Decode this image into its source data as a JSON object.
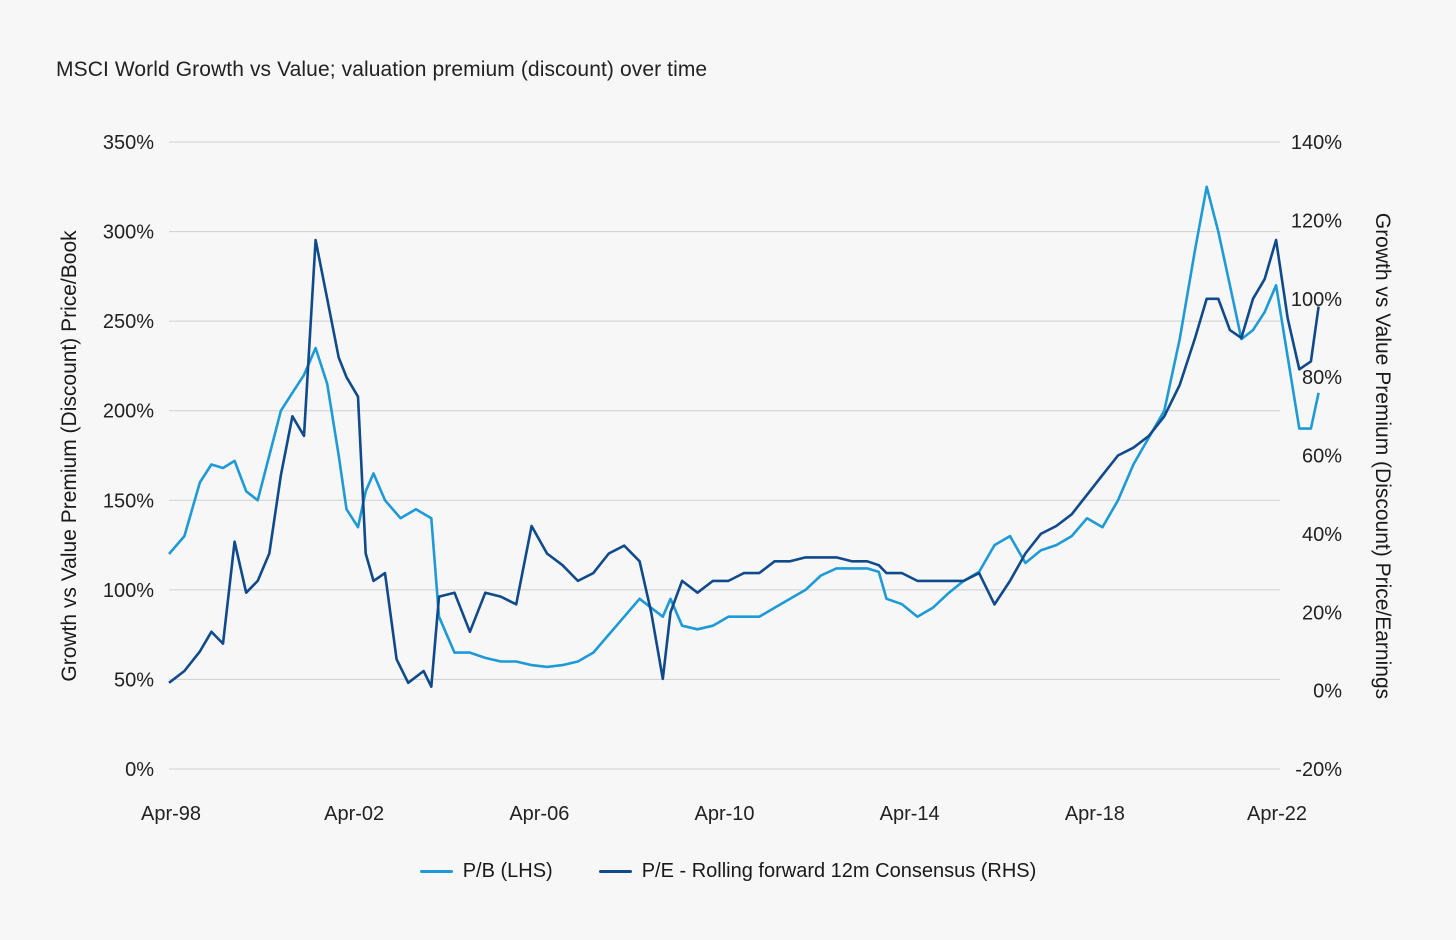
{
  "title": "MSCI World Growth vs Value; valuation premium (discount) over time",
  "colors": {
    "pb": "#1e9ad6",
    "pe": "#0f4a8a",
    "grid": "#cfcfcf",
    "background": "#f7f7f7"
  },
  "legend": {
    "pb_label": "P/B (LHS)",
    "pe_label": "P/E - Rolling forward 12m Consensus (RHS)"
  },
  "chart_data": {
    "type": "line",
    "title": "MSCI World Growth vs Value; valuation premium (discount) over time",
    "x_axis": {
      "tick_labels": [
        "Apr-98",
        "Apr-02",
        "Apr-06",
        "Apr-10",
        "Apr-14",
        "Apr-18",
        "Apr-22"
      ],
      "range": [
        "1998-04",
        "2022-04"
      ]
    },
    "y_left": {
      "label": "Growth vs Value Premium (Discount) Price/Book",
      "range": [
        0,
        350
      ],
      "ticks": [
        "0%",
        "50%",
        "100%",
        "150%",
        "200%",
        "250%",
        "300%",
        "350%"
      ]
    },
    "y_right": {
      "label": "Growth vs Value Premium (Discount) Price/Earnings",
      "range": [
        -20,
        140
      ],
      "ticks": [
        "-20%",
        "0%",
        "20%",
        "40%",
        "60%",
        "80%",
        "100%",
        "120%",
        "140%"
      ]
    },
    "grid": "horizontal",
    "legend_position": "bottom-center",
    "series": [
      {
        "name": "P/B (LHS)",
        "axis": "left",
        "points": [
          [
            "1998-04",
            120
          ],
          [
            "1998-08",
            130
          ],
          [
            "1998-12",
            160
          ],
          [
            "1999-03",
            170
          ],
          [
            "1999-06",
            168
          ],
          [
            "1999-09",
            172
          ],
          [
            "1999-12",
            155
          ],
          [
            "2000-03",
            150
          ],
          [
            "2000-06",
            175
          ],
          [
            "2000-09",
            200
          ],
          [
            "2000-12",
            210
          ],
          [
            "2001-03",
            220
          ],
          [
            "2001-06",
            235
          ],
          [
            "2001-09",
            215
          ],
          [
            "2001-12",
            175
          ],
          [
            "2002-02",
            145
          ],
          [
            "2002-05",
            135
          ],
          [
            "2002-07",
            155
          ],
          [
            "2002-09",
            165
          ],
          [
            "2002-12",
            150
          ],
          [
            "2003-04",
            140
          ],
          [
            "2003-08",
            145
          ],
          [
            "2003-12",
            140
          ],
          [
            "2004-02",
            85
          ],
          [
            "2004-06",
            65
          ],
          [
            "2004-10",
            65
          ],
          [
            "2005-02",
            62
          ],
          [
            "2005-06",
            60
          ],
          [
            "2005-10",
            60
          ],
          [
            "2006-02",
            58
          ],
          [
            "2006-06",
            57
          ],
          [
            "2006-10",
            58
          ],
          [
            "2007-02",
            60
          ],
          [
            "2007-06",
            65
          ],
          [
            "2007-10",
            75
          ],
          [
            "2008-02",
            85
          ],
          [
            "2008-06",
            95
          ],
          [
            "2008-09",
            90
          ],
          [
            "2008-12",
            85
          ],
          [
            "2009-02",
            95
          ],
          [
            "2009-05",
            80
          ],
          [
            "2009-09",
            78
          ],
          [
            "2010-01",
            80
          ],
          [
            "2010-05",
            85
          ],
          [
            "2010-09",
            85
          ],
          [
            "2011-01",
            85
          ],
          [
            "2011-05",
            90
          ],
          [
            "2011-09",
            95
          ],
          [
            "2012-01",
            100
          ],
          [
            "2012-05",
            108
          ],
          [
            "2012-09",
            112
          ],
          [
            "2013-01",
            112
          ],
          [
            "2013-05",
            112
          ],
          [
            "2013-08",
            110
          ],
          [
            "2013-10",
            95
          ],
          [
            "2014-02",
            92
          ],
          [
            "2014-06",
            85
          ],
          [
            "2014-10",
            90
          ],
          [
            "2015-02",
            98
          ],
          [
            "2015-06",
            105
          ],
          [
            "2015-10",
            110
          ],
          [
            "2016-02",
            125
          ],
          [
            "2016-06",
            130
          ],
          [
            "2016-10",
            115
          ],
          [
            "2017-02",
            122
          ],
          [
            "2017-06",
            125
          ],
          [
            "2017-10",
            130
          ],
          [
            "2018-02",
            140
          ],
          [
            "2018-06",
            135
          ],
          [
            "2018-10",
            150
          ],
          [
            "2019-02",
            170
          ],
          [
            "2019-06",
            185
          ],
          [
            "2019-10",
            200
          ],
          [
            "2020-02",
            240
          ],
          [
            "2020-06",
            290
          ],
          [
            "2020-09",
            325
          ],
          [
            "2020-12",
            300
          ],
          [
            "2021-03",
            270
          ],
          [
            "2021-06",
            240
          ],
          [
            "2021-09",
            245
          ],
          [
            "2021-12",
            255
          ],
          [
            "2022-03",
            270
          ],
          [
            "2022-06",
            230
          ],
          [
            "2022-09",
            190
          ],
          [
            "2022-12",
            190
          ],
          [
            "2023-02",
            210
          ]
        ]
      },
      {
        "name": "P/E - Rolling forward 12m Consensus (RHS)",
        "axis": "right",
        "points": [
          [
            "1998-04",
            2
          ],
          [
            "1998-08",
            5
          ],
          [
            "1998-12",
            10
          ],
          [
            "1999-03",
            15
          ],
          [
            "1999-06",
            12
          ],
          [
            "1999-09",
            38
          ],
          [
            "1999-12",
            25
          ],
          [
            "2000-03",
            28
          ],
          [
            "2000-06",
            35
          ],
          [
            "2000-09",
            55
          ],
          [
            "2000-12",
            70
          ],
          [
            "2001-03",
            65
          ],
          [
            "2001-06",
            115
          ],
          [
            "2001-09",
            100
          ],
          [
            "2001-12",
            85
          ],
          [
            "2002-02",
            80
          ],
          [
            "2002-05",
            75
          ],
          [
            "2002-07",
            35
          ],
          [
            "2002-09",
            28
          ],
          [
            "2002-12",
            30
          ],
          [
            "2003-03",
            8
          ],
          [
            "2003-06",
            2
          ],
          [
            "2003-10",
            5
          ],
          [
            "2003-12",
            1
          ],
          [
            "2004-02",
            24
          ],
          [
            "2004-06",
            25
          ],
          [
            "2004-10",
            15
          ],
          [
            "2005-02",
            25
          ],
          [
            "2005-06",
            24
          ],
          [
            "2005-10",
            22
          ],
          [
            "2006-02",
            42
          ],
          [
            "2006-06",
            35
          ],
          [
            "2006-10",
            32
          ],
          [
            "2007-02",
            28
          ],
          [
            "2007-06",
            30
          ],
          [
            "2007-10",
            35
          ],
          [
            "2008-02",
            37
          ],
          [
            "2008-06",
            33
          ],
          [
            "2008-09",
            20
          ],
          [
            "2008-12",
            3
          ],
          [
            "2009-02",
            20
          ],
          [
            "2009-05",
            28
          ],
          [
            "2009-09",
            25
          ],
          [
            "2010-01",
            28
          ],
          [
            "2010-05",
            28
          ],
          [
            "2010-09",
            30
          ],
          [
            "2011-01",
            30
          ],
          [
            "2011-05",
            33
          ],
          [
            "2011-09",
            33
          ],
          [
            "2012-01",
            34
          ],
          [
            "2012-05",
            34
          ],
          [
            "2012-09",
            34
          ],
          [
            "2013-01",
            33
          ],
          [
            "2013-05",
            33
          ],
          [
            "2013-08",
            32
          ],
          [
            "2013-10",
            30
          ],
          [
            "2014-02",
            30
          ],
          [
            "2014-06",
            28
          ],
          [
            "2014-10",
            28
          ],
          [
            "2015-02",
            28
          ],
          [
            "2015-06",
            28
          ],
          [
            "2015-10",
            30
          ],
          [
            "2016-02",
            22
          ],
          [
            "2016-06",
            28
          ],
          [
            "2016-10",
            35
          ],
          [
            "2017-02",
            40
          ],
          [
            "2017-06",
            42
          ],
          [
            "2017-10",
            45
          ],
          [
            "2018-02",
            50
          ],
          [
            "2018-06",
            55
          ],
          [
            "2018-10",
            60
          ],
          [
            "2019-02",
            62
          ],
          [
            "2019-06",
            65
          ],
          [
            "2019-10",
            70
          ],
          [
            "2020-02",
            78
          ],
          [
            "2020-06",
            90
          ],
          [
            "2020-09",
            100
          ],
          [
            "2020-12",
            100
          ],
          [
            "2021-03",
            92
          ],
          [
            "2021-06",
            90
          ],
          [
            "2021-09",
            100
          ],
          [
            "2021-12",
            105
          ],
          [
            "2022-03",
            115
          ],
          [
            "2022-06",
            95
          ],
          [
            "2022-09",
            82
          ],
          [
            "2022-12",
            84
          ],
          [
            "2023-02",
            98
          ]
        ]
      }
    ]
  }
}
